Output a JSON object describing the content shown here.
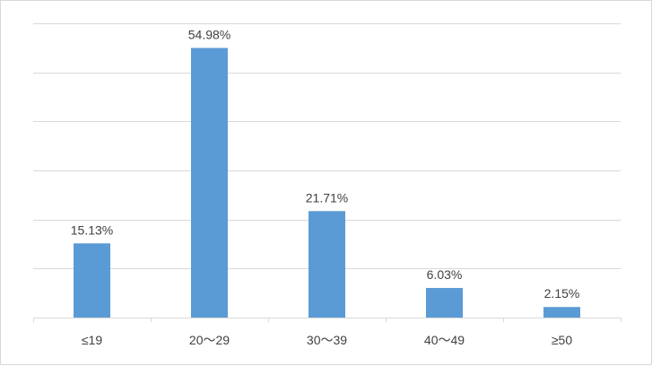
{
  "chart_data": {
    "type": "bar",
    "categories": [
      "≤19",
      "20～29",
      "30～39",
      "40～49",
      "≥50"
    ],
    "values": [
      15.13,
      54.98,
      21.71,
      6.03,
      2.15
    ],
    "value_labels": [
      "15.13%",
      "54.98%",
      "21.71%",
      "6.03%",
      "2.15%"
    ],
    "title": "",
    "xlabel": "",
    "ylabel": "",
    "ylim": [
      0,
      60
    ],
    "grid": true,
    "legend": "none",
    "bar_color": "#5b9bd5",
    "gridline_color": "#d9d9d9"
  }
}
